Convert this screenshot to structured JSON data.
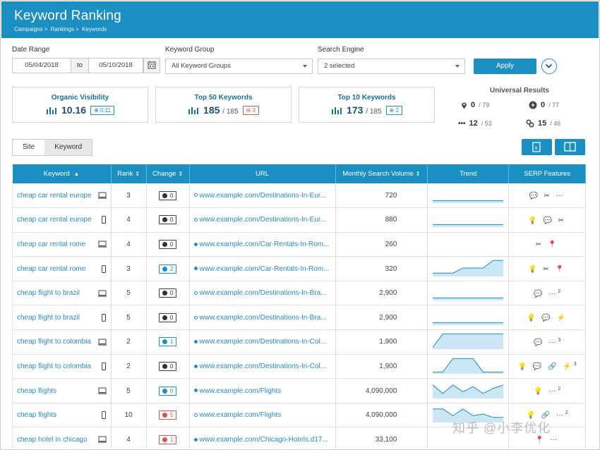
{
  "header": {
    "title": "Keyword Ranking",
    "breadcrumbs": [
      "Campaigns >",
      "Rankings >",
      "Keywords"
    ]
  },
  "filters": {
    "date_range_label": "Date Range",
    "date_from": "05/04/2018",
    "to_label": "to",
    "date_to": "05/10/2018",
    "keyword_group_label": "Keyword Group",
    "keyword_group_value": "All Keyword Groups",
    "search_engine_label": "Search Engine",
    "search_engine_value": "2 selected",
    "apply_label": "Apply"
  },
  "cards": {
    "organic": {
      "title": "Organic Visibility",
      "value": "10.16",
      "change": "0.11"
    },
    "top50": {
      "title": "Top 50 Keywords",
      "value": "185",
      "total": "/ 185",
      "change": "3"
    },
    "top10": {
      "title": "Top 10 Keywords",
      "value": "173",
      "total": "/ 185",
      "change": "2"
    }
  },
  "universal": {
    "title": "Universal Results",
    "items": [
      {
        "icon": "pin-icon",
        "value": "0",
        "total": "/ 79"
      },
      {
        "icon": "flash-icon",
        "value": "0",
        "total": "/ 77"
      },
      {
        "icon": "more-icon",
        "value": "12",
        "total": "/ 53"
      },
      {
        "icon": "link-icon",
        "value": "15",
        "total": "/ 46"
      }
    ]
  },
  "view_toggle": {
    "site": "Site",
    "keyword": "Keyword"
  },
  "table": {
    "headers": {
      "keyword": "Keyword",
      "rank": "Rank",
      "change": "Change",
      "url": "URL",
      "volume": "Monthly Search Volume",
      "trend": "Trend",
      "serp": "SERP Features"
    },
    "rows": [
      {
        "keyword": "cheap car rental europe",
        "device": "desktop",
        "rank": "3",
        "change": "0",
        "change_style": "grey",
        "url": "www.example.com/Destinations-In-Eur...",
        "dot": "hollow",
        "volume": "720",
        "trend": [
          0.15,
          0.15,
          0.15,
          0.15,
          0.15,
          0.15,
          0.15,
          0.15
        ],
        "serp": "💬 ✂ ⋯",
        "serp_sup": ""
      },
      {
        "keyword": "cheap car rental europe",
        "device": "mobile",
        "rank": "4",
        "change": "0",
        "change_style": "grey",
        "url": "www.example.com/Destinations-In-Eur...",
        "dot": "hollow",
        "volume": "880",
        "trend": [
          0.15,
          0.15,
          0.15,
          0.15,
          0.15,
          0.15,
          0.15,
          0.15
        ],
        "serp": "💡 💬 ✂",
        "serp_sup": ""
      },
      {
        "keyword": "cheap car rental rome",
        "device": "desktop",
        "rank": "4",
        "change": "0",
        "change_style": "grey",
        "url": "www.example.com/Car-Rentals-In-Rom...",
        "dot": "fill",
        "volume": "260",
        "trend": [],
        "serp": "✂ 📍",
        "serp_sup": ""
      },
      {
        "keyword": "cheap car rental rome",
        "device": "mobile",
        "rank": "3",
        "change": "2",
        "change_style": "blue",
        "url": "www.example.com/Car-Rentals-In-Rom...",
        "dot": "fill",
        "volume": "320",
        "trend": [
          0.2,
          0.2,
          0.2,
          0.5,
          0.5,
          0.5,
          0.95,
          0.95
        ],
        "serp": "💡 ✂ 📍",
        "serp_sup": ""
      },
      {
        "keyword": "cheap flight to brazil",
        "device": "desktop",
        "rank": "5",
        "change": "0",
        "change_style": "grey",
        "url": "www.example.com/Destinations-In-Bra...",
        "dot": "hollow",
        "volume": "2,900",
        "trend": [
          0.15,
          0.15,
          0.15,
          0.15,
          0.15,
          0.15,
          0.15,
          0.15
        ],
        "serp": "💬 ⋯",
        "serp_sup": "2"
      },
      {
        "keyword": "cheap flight to brazil",
        "device": "mobile",
        "rank": "5",
        "change": "0",
        "change_style": "grey",
        "url": "www.example.com/Destinations-In-Bra...",
        "dot": "hollow",
        "volume": "2,900",
        "trend": [
          0.15,
          0.15,
          0.15,
          0.15,
          0.15,
          0.15,
          0.15,
          0.15
        ],
        "serp": "💡 💬 ⚡",
        "serp_sup": ""
      },
      {
        "keyword": "cheap flight to colombia",
        "device": "desktop",
        "rank": "2",
        "change": "1",
        "change_style": "blue",
        "url": "www.example.com/Destinations-In-Col...",
        "dot": "fill",
        "volume": "1,900",
        "trend": [
          0.1,
          0.9,
          0.9,
          0.9,
          0.9,
          0.9,
          0.9,
          0.9
        ],
        "serp": "💬 ⋯",
        "serp_sup": "3"
      },
      {
        "keyword": "cheap flight to colombia",
        "device": "mobile",
        "rank": "2",
        "change": "0",
        "change_style": "grey",
        "url": "www.example.com/Destinations-In-Col...",
        "dot": "fill",
        "volume": "1,900",
        "trend": [
          0.1,
          0.1,
          0.9,
          0.9,
          0.9,
          0.1,
          0.1,
          0.1
        ],
        "serp": "💡 💬 🔗 ⚡",
        "serp_sup": "3"
      },
      {
        "keyword": "cheap flights",
        "device": "desktop",
        "rank": "5",
        "change": "0",
        "change_style": "blue",
        "url": "www.example.com/Flights",
        "dot": "fill",
        "volume": "4,090,000",
        "trend": [
          0.8,
          0.3,
          0.8,
          0.4,
          0.7,
          0.3,
          0.6,
          0.8
        ],
        "serp": "💡 ⋯",
        "serp_sup": "2"
      },
      {
        "keyword": "cheap flights",
        "device": "mobile",
        "rank": "10",
        "change": "5",
        "change_style": "red",
        "url": "www.example.com/Flights",
        "dot": "hollow",
        "volume": "4,090,000",
        "trend": [
          0.8,
          0.8,
          0.4,
          0.8,
          0.4,
          0.5,
          0.3,
          0.3
        ],
        "serp": "💡 🔗 ⋯",
        "serp_sup": "2"
      },
      {
        "keyword": "cheap hotel in chicago",
        "device": "desktop",
        "rank": "4",
        "change": "1",
        "change_style": "red",
        "url": "www.example.com/Chicago-Hotels.d17...",
        "dot": "fill",
        "volume": "33,100",
        "trend": [],
        "serp": "📍 ⋯",
        "serp_sup": ""
      }
    ]
  },
  "watermark": "知乎 @小李优化",
  "colors": {
    "brand": "#1b8ec2",
    "link": "#2a8ac2",
    "negative": "#d9534f"
  }
}
